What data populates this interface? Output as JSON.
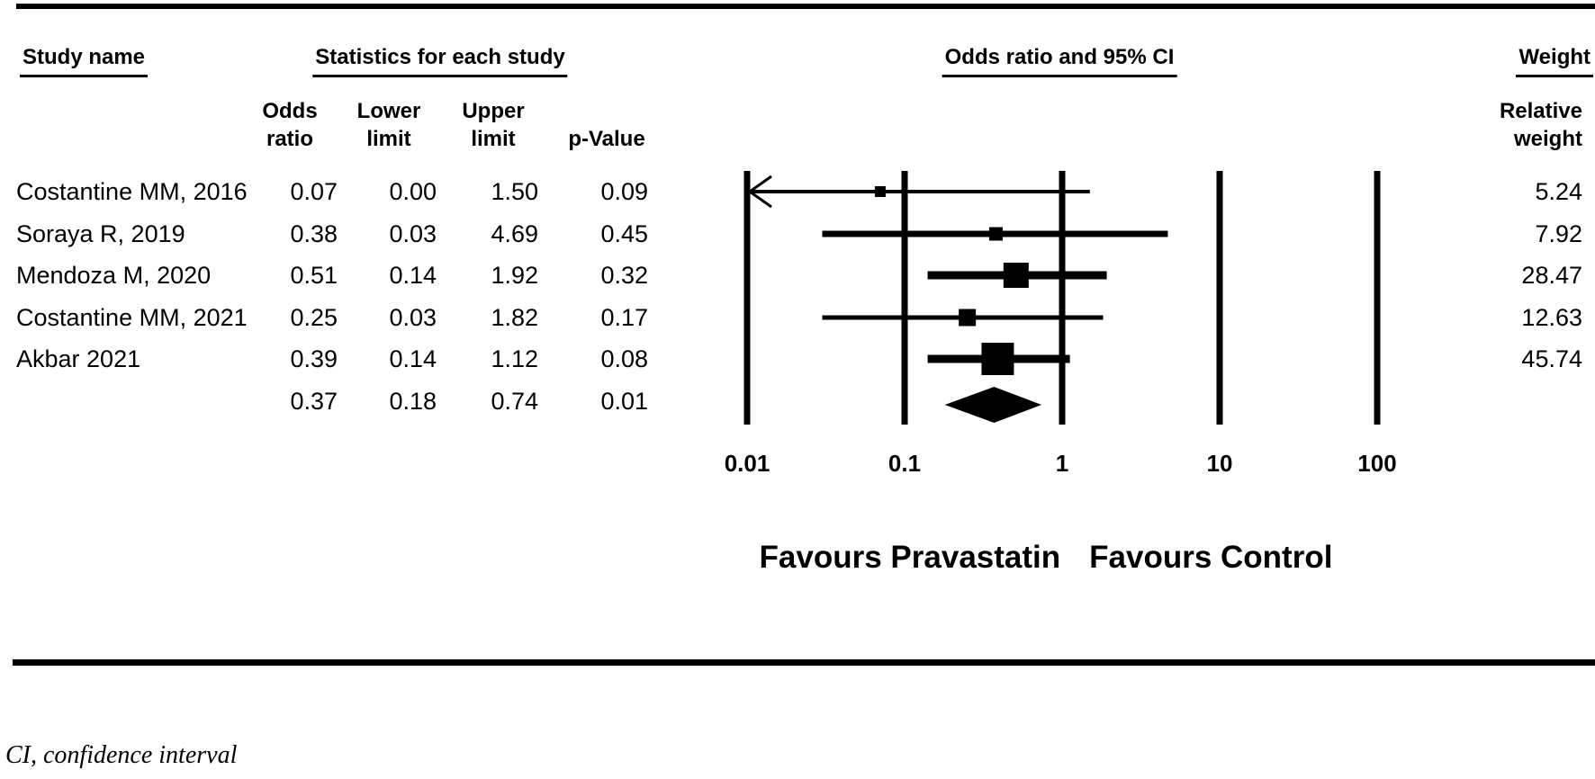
{
  "colors": {
    "ink": "#000000",
    "paper": "#ffffff"
  },
  "table": {
    "header": {
      "study_name": "Study name",
      "statistics": "Statistics for each study",
      "or_ci": "Odds ratio and 95% CI",
      "weight": "Weight"
    },
    "subheader": {
      "odds_ratio": [
        "Odds",
        "ratio"
      ],
      "lower_limit": [
        "Lower",
        "limit"
      ],
      "upper_limit": [
        "Upper",
        "limit"
      ],
      "p_value": "p-Value",
      "relative_weight": [
        "Relative",
        "weight"
      ]
    },
    "rows": [
      {
        "study": "Costantine MM, 2016",
        "odds_ratio": "0.07",
        "lower_limit": "0.00",
        "upper_limit": "1.50",
        "p_value": "0.09",
        "relative_weight": "5.24"
      },
      {
        "study": "Soraya R, 2019",
        "odds_ratio": "0.38",
        "lower_limit": "0.03",
        "upper_limit": "4.69",
        "p_value": "0.45",
        "relative_weight": "7.92"
      },
      {
        "study": "Mendoza M, 2020",
        "odds_ratio": "0.51",
        "lower_limit": "0.14",
        "upper_limit": "1.92",
        "p_value": "0.32",
        "relative_weight": "28.47"
      },
      {
        "study": "Costantine MM, 2021",
        "odds_ratio": "0.25",
        "lower_limit": "0.03",
        "upper_limit": "1.82",
        "p_value": "0.17",
        "relative_weight": "12.63"
      },
      {
        "study": "Akbar 2021",
        "odds_ratio": "0.39",
        "lower_limit": "0.14",
        "upper_limit": "1.12",
        "p_value": "0.08",
        "relative_weight": "45.74"
      }
    ],
    "summary_row": {
      "odds_ratio": "0.37",
      "lower_limit": "0.18",
      "upper_limit": "0.74",
      "p_value": "0.01"
    }
  },
  "chart_data": {
    "type": "forest",
    "title": "Odds ratio and 95% CI",
    "x_scale": "log10",
    "x_range": [
      0.01,
      100
    ],
    "x_ticks": [
      "0.01",
      "0.1",
      "1",
      "10",
      "100"
    ],
    "studies": [
      {
        "name": "Costantine MM, 2016",
        "or": 0.07,
        "ci_low": 0.0,
        "ci_high": 1.5,
        "p_value": 0.09,
        "weight_pct": 5.24,
        "arrow_low": true,
        "ci_lw": 4
      },
      {
        "name": "Soraya R, 2019",
        "or": 0.38,
        "ci_low": 0.03,
        "ci_high": 4.69,
        "p_value": 0.45,
        "weight_pct": 7.92,
        "arrow_low": false,
        "ci_lw": 7
      },
      {
        "name": "Mendoza M, 2020",
        "or": 0.51,
        "ci_low": 0.14,
        "ci_high": 1.92,
        "p_value": 0.32,
        "weight_pct": 28.47,
        "arrow_low": false,
        "ci_lw": 9
      },
      {
        "name": "Costantine MM, 2021",
        "or": 0.25,
        "ci_low": 0.03,
        "ci_high": 1.82,
        "p_value": 0.17,
        "weight_pct": 12.63,
        "arrow_low": false,
        "ci_lw": 5
      },
      {
        "name": "Akbar 2021",
        "or": 0.39,
        "ci_low": 0.14,
        "ci_high": 1.12,
        "p_value": 0.08,
        "weight_pct": 45.74,
        "arrow_low": false,
        "ci_lw": 9
      }
    ],
    "summary": {
      "or": 0.37,
      "ci_low": 0.18,
      "ci_high": 0.74,
      "p_value": 0.01
    },
    "axis_caption_left": "Favours Pravastatin",
    "axis_caption_right": "Favours Control",
    "grid": "vertical-reference-lines",
    "legend": "none"
  },
  "footnote": "CI, confidence interval"
}
